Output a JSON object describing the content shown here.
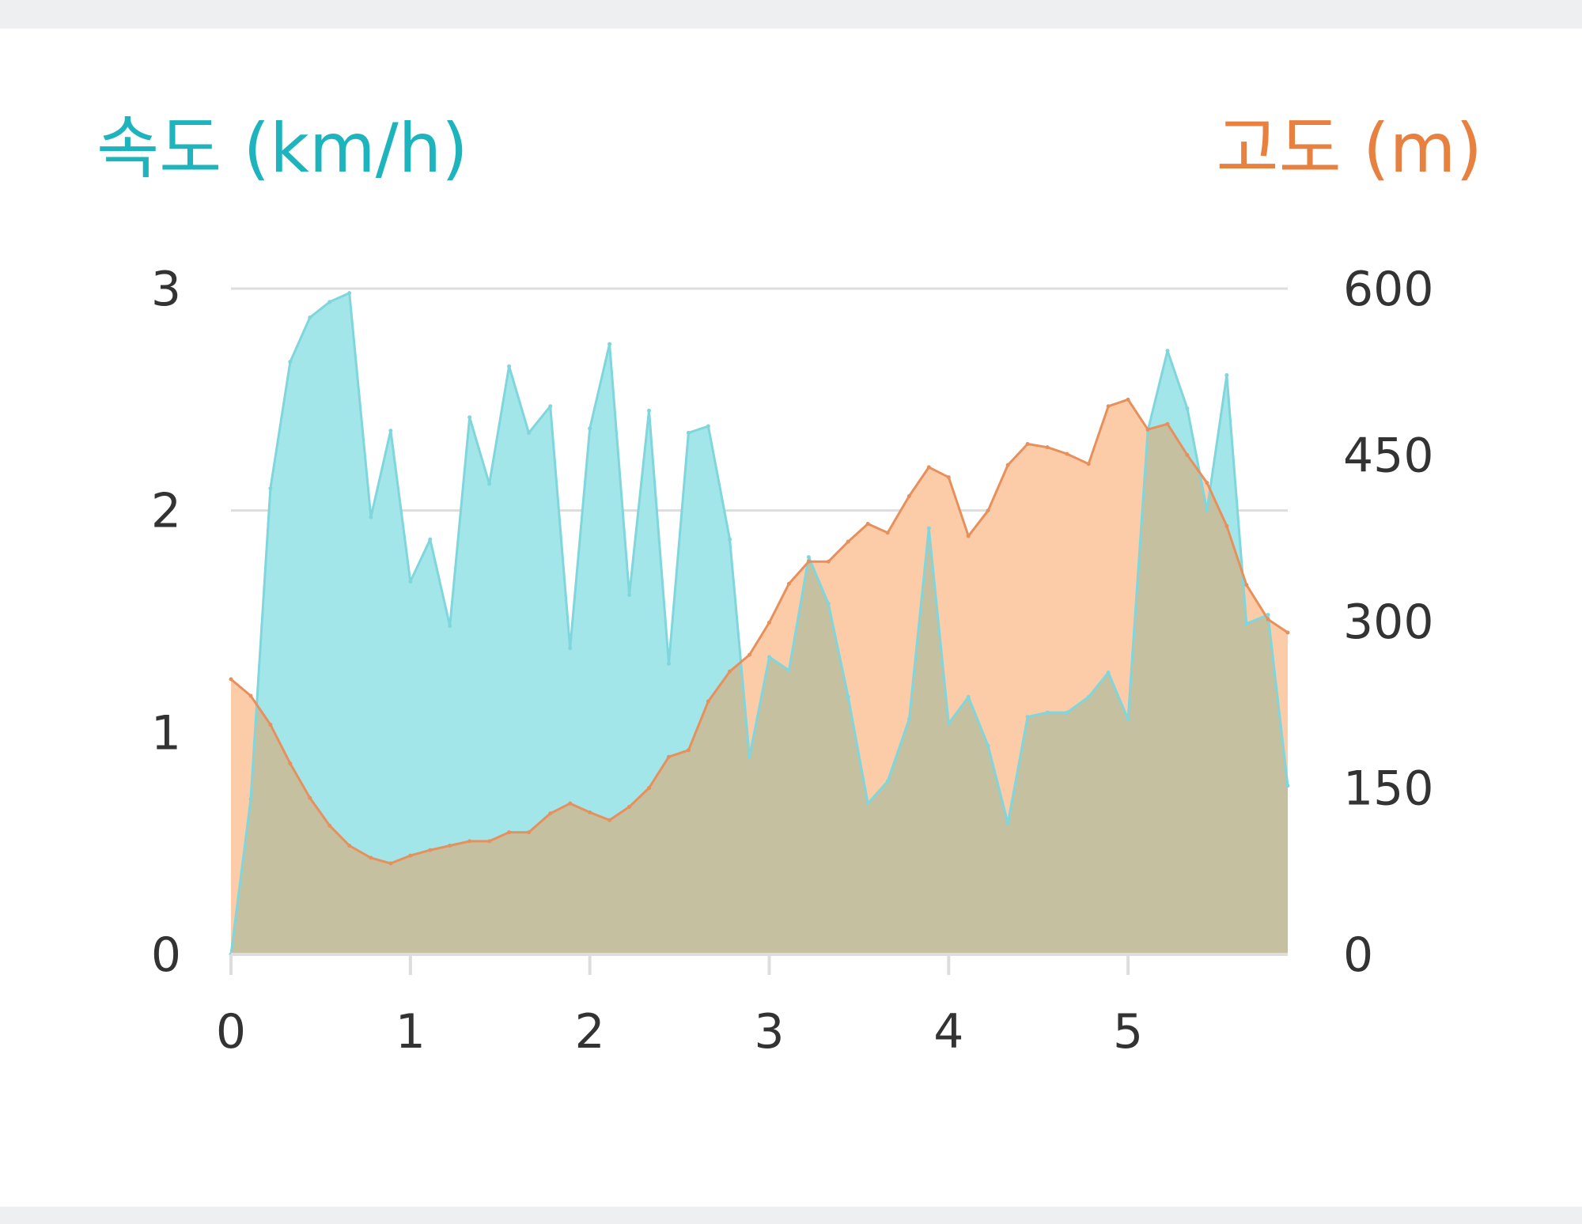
{
  "chart_data": {
    "type": "area",
    "left_axis_title": "속도 (km/h)",
    "right_axis_title": "고도 (m)",
    "colors": {
      "speed_fill": "#a2e6e9",
      "speed_line": "#7fd6dc",
      "speed_title": "#1db4bd",
      "altitude_fill": "#fccca9",
      "altitude_line": "#e8905c",
      "altitude_title": "#e8803f",
      "overlap": "#c4c0a0",
      "grid": "#dddddd",
      "tick_text": "#333333"
    },
    "x_ticks": [
      "0",
      "1",
      "2",
      "3",
      "4",
      "5"
    ],
    "xlim": [
      0,
      5.89
    ],
    "y_left_ticks": [
      "0",
      "1",
      "2",
      "3"
    ],
    "y_left_lim": [
      0,
      3
    ],
    "y_right_ticks": [
      "0",
      "150",
      "300",
      "450",
      "600"
    ],
    "y_right_lim": [
      0,
      600
    ],
    "grid": true,
    "series": [
      {
        "axis": "left",
        "x": [
          0,
          0.11,
          0.22,
          0.33,
          0.44,
          0.55,
          0.66,
          0.78,
          0.89,
          1.0,
          1.11,
          1.22,
          1.33,
          1.44,
          1.55,
          1.66,
          1.78,
          1.89,
          2.0,
          2.11,
          2.22,
          2.33,
          2.44,
          2.55,
          2.66,
          2.78,
          2.89,
          3.0,
          3.11,
          3.22,
          3.33,
          3.44,
          3.55,
          3.66,
          3.78,
          3.89,
          4.0,
          4.11,
          4.22,
          4.33,
          4.44,
          4.55,
          4.66,
          4.78,
          4.89,
          5.0,
          5.11,
          5.22,
          5.33,
          5.44,
          5.55,
          5.66,
          5.78,
          5.89
        ],
        "values": [
          0,
          0.7,
          2.1,
          2.67,
          2.87,
          2.94,
          2.98,
          1.97,
          2.36,
          1.68,
          1.87,
          1.48,
          2.42,
          2.12,
          2.65,
          2.35,
          2.47,
          1.38,
          2.37,
          2.75,
          1.62,
          2.45,
          1.31,
          2.35,
          2.38,
          1.87,
          0.89,
          1.34,
          1.28,
          1.79,
          1.58,
          1.16,
          0.68,
          0.78,
          1.06,
          1.92,
          1.04,
          1.16,
          0.94,
          0.59,
          1.07,
          1.09,
          1.09,
          1.16,
          1.27,
          1.06,
          2.36,
          2.72,
          2.46,
          2.0,
          2.61,
          1.49,
          1.53,
          0.76
        ]
      },
      {
        "axis": "right",
        "x": [
          0,
          0.11,
          0.22,
          0.33,
          0.44,
          0.55,
          0.66,
          0.78,
          0.89,
          1.0,
          1.11,
          1.22,
          1.33,
          1.44,
          1.55,
          1.66,
          1.78,
          1.89,
          2.0,
          2.11,
          2.22,
          2.33,
          2.44,
          2.55,
          2.66,
          2.78,
          2.89,
          3.0,
          3.11,
          3.22,
          3.33,
          3.44,
          3.55,
          3.66,
          3.78,
          3.89,
          4.0,
          4.11,
          4.22,
          4.33,
          4.44,
          4.55,
          4.66,
          4.78,
          4.89,
          5.0,
          5.11,
          5.22,
          5.33,
          5.44,
          5.55,
          5.66,
          5.78,
          5.89
        ],
        "values": [
          248,
          233,
          207,
          172,
          141,
          116,
          98,
          87,
          82,
          89,
          94,
          98,
          102,
          102,
          110,
          110,
          127,
          136,
          128,
          121,
          133,
          150,
          178,
          184,
          228,
          255,
          270,
          299,
          334,
          354,
          354,
          372,
          388,
          380,
          413,
          439,
          430,
          377,
          400,
          441,
          460,
          457,
          451,
          442,
          494,
          500,
          473,
          478,
          450,
          425,
          386,
          333,
          302,
          290
        ]
      }
    ]
  }
}
